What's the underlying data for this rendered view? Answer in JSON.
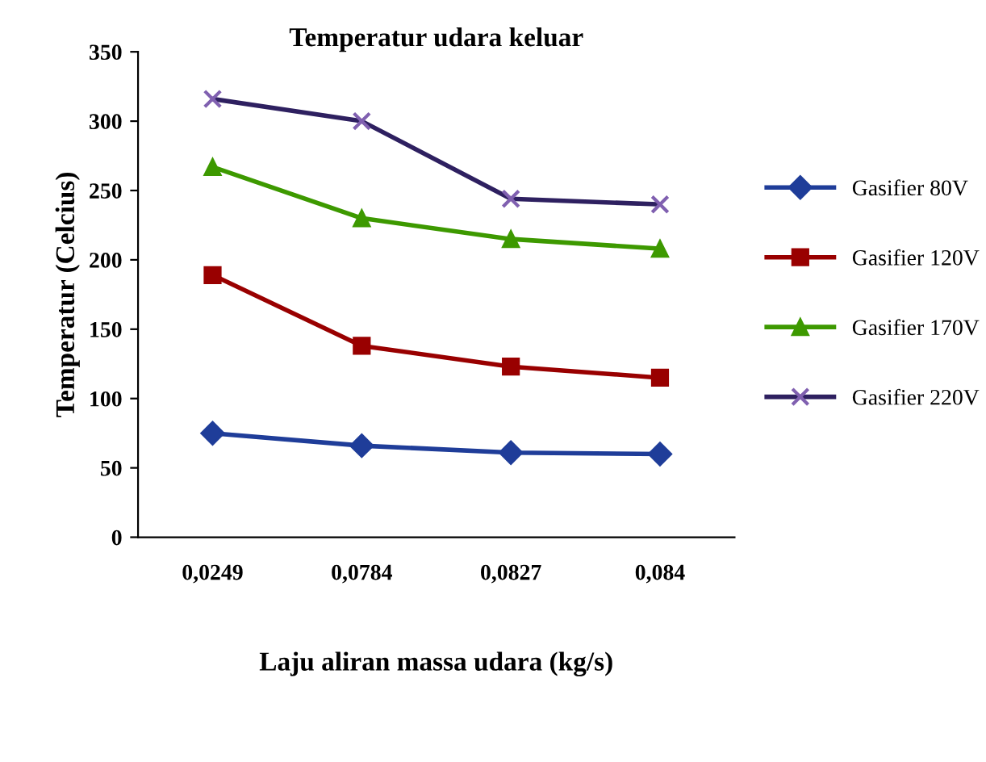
{
  "chart_data": {
    "type": "line",
    "title": "Temperatur udara keluar",
    "xlabel": "Laju aliran massa udara (kg/s)",
    "ylabel": "Temperatur (Celcius)",
    "categories": [
      "0,0249",
      "0,0784",
      "0,0827",
      "0,084"
    ],
    "series": [
      {
        "name": "Gasifier 80V",
        "color": "#1f3d99",
        "marker": "diamond",
        "values": [
          75,
          66,
          61,
          60
        ]
      },
      {
        "name": "Gasifier 120V",
        "color": "#990000",
        "marker": "square",
        "values": [
          189,
          138,
          123,
          115
        ]
      },
      {
        "name": "Gasifier 170V",
        "color": "#3d9900",
        "marker": "triangle",
        "values": [
          267,
          230,
          215,
          208
        ]
      },
      {
        "name": "Gasifier 220V",
        "color": "#2e2060",
        "marker": "cross",
        "values": [
          316,
          300,
          244,
          240
        ]
      }
    ],
    "ylim": [
      0,
      350
    ],
    "yticks": [
      0,
      50,
      100,
      150,
      200,
      250,
      300,
      350
    ],
    "grid": false,
    "legend": "right",
    "line_style": "solid"
  }
}
